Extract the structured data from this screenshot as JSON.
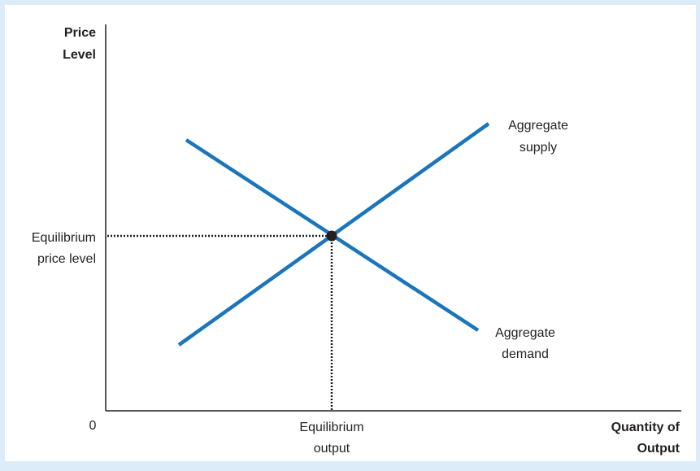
{
  "diagram": {
    "y_axis_label": [
      "Price",
      "Level"
    ],
    "x_axis_label": [
      "Quantity of",
      "Output"
    ],
    "origin_label": "0",
    "y_marker_label": [
      "Equilibrium",
      "price level"
    ],
    "x_marker_label": [
      "Equilibrium",
      "output"
    ],
    "supply_label": [
      "Aggregate",
      "supply"
    ],
    "demand_label": [
      "Aggregate",
      "demand"
    ],
    "colors": {
      "background": "#dcecf8",
      "plot_area": "#ffffff",
      "curve": "#1a75bb",
      "axis": "#231f20",
      "point": "#231f20"
    }
  }
}
